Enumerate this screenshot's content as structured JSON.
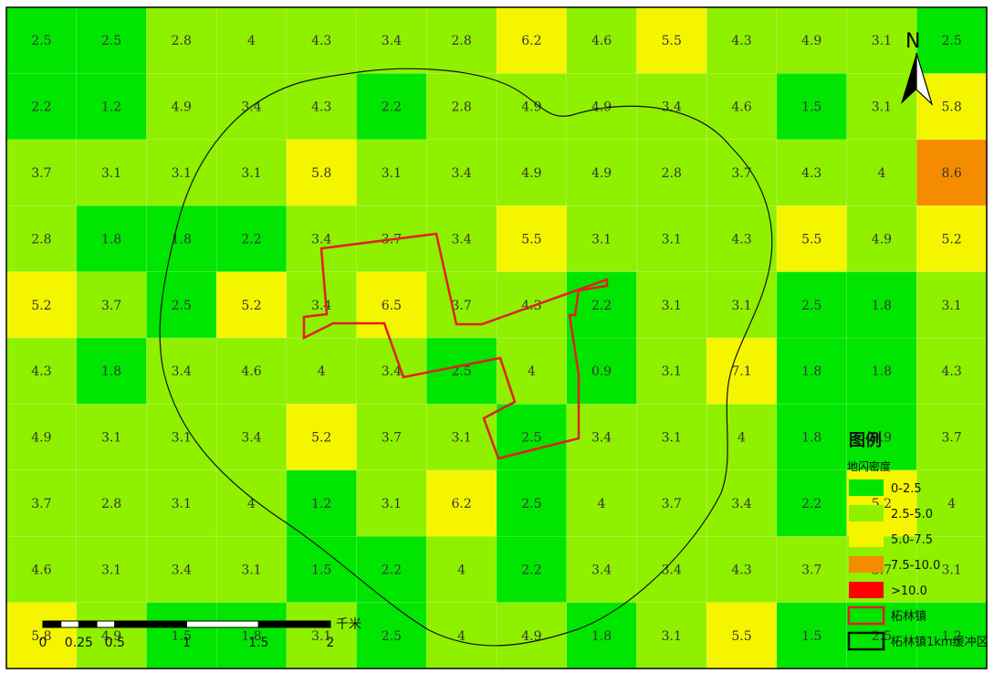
{
  "grid": {
    "rows": [
      [
        "2.5",
        "2.5",
        "2.8",
        "4",
        "4.3",
        "3.4",
        "2.8",
        "6.2",
        "4.6",
        "5.5",
        "4.3",
        "4.9",
        "3.1",
        "2.5"
      ],
      [
        "2.2",
        "1.2",
        "4.9",
        "3.4",
        "4.3",
        "2.2",
        "2.8",
        "4.9",
        "4.9",
        "3.4",
        "4.6",
        "1.5",
        "3.1",
        "5.8"
      ],
      [
        "3.7",
        "3.1",
        "3.1",
        "3.1",
        "5.8",
        "3.1",
        "3.4",
        "4.9",
        "4.9",
        "2.8",
        "3.7",
        "4.3",
        "4",
        "8.6"
      ],
      [
        "2.8",
        "1.8",
        "1.8",
        "2.2",
        "3.4",
        "3.7",
        "3.4",
        "5.5",
        "3.1",
        "3.1",
        "4.3",
        "5.5",
        "4.9",
        "5.2"
      ],
      [
        "5.2",
        "3.7",
        "2.5",
        "5.2",
        "3.4",
        "6.5",
        "3.7",
        "4.3",
        "2.2",
        "3.1",
        "3.1",
        "2.5",
        "1.8",
        "3.1"
      ],
      [
        "4.3",
        "1.8",
        "3.4",
        "4.6",
        "4",
        "3.4",
        "2.5",
        "4",
        "0.9",
        "3.1",
        "7.1",
        "1.8",
        "1.8",
        "4.3"
      ],
      [
        "4.9",
        "3.1",
        "3.1",
        "3.4",
        "5.2",
        "3.7",
        "3.1",
        "2.5",
        "3.4",
        "3.1",
        "4",
        "1.8",
        "0.9",
        "3.7"
      ],
      [
        "3.7",
        "2.8",
        "3.1",
        "4",
        "1.2",
        "3.1",
        "6.2",
        "2.5",
        "4",
        "3.7",
        "3.4",
        "2.2",
        "5.2",
        "4"
      ],
      [
        "4.6",
        "3.1",
        "3.4",
        "3.1",
        "1.5",
        "2.2",
        "4",
        "2.2",
        "3.4",
        "3.4",
        "4.3",
        "3.7",
        "3.7",
        "3.1"
      ],
      [
        "5.8",
        "4.9",
        "1.5",
        "1.8",
        "3.1",
        "2.5",
        "4",
        "4.9",
        "1.8",
        "3.1",
        "5.5",
        "1.5",
        "2.5",
        "1.2"
      ]
    ],
    "classes": [
      {
        "max": 2.5,
        "color": "#00e600"
      },
      {
        "max": 5.0,
        "color": "#8ff000"
      },
      {
        "max": 7.5,
        "color": "#f5f500"
      },
      {
        "max": 10.0,
        "color": "#f58c00"
      },
      {
        "max": 9999,
        "color": "#ff0000"
      }
    ]
  },
  "north_arrow": {
    "label": "N"
  },
  "legend": {
    "title": "图例",
    "subtitle": "地闪密度",
    "items": [
      {
        "label": "0-2.5",
        "color": "#00e600",
        "kind": "fill"
      },
      {
        "label": "2.5-5.0",
        "color": "#8ff000",
        "kind": "fill"
      },
      {
        "label": "5.0-7.5",
        "color": "#f5f500",
        "kind": "fill"
      },
      {
        "label": "7.5-10.0",
        "color": "#f58c00",
        "kind": "fill"
      },
      {
        "label": ">10.0",
        "color": "#ff0000",
        "kind": "fill"
      },
      {
        "label": "柘林镇",
        "color": "#e02020",
        "kind": "outline"
      },
      {
        "label": "柘林镇1km缓冲区",
        "color": "#111111",
        "kind": "outline"
      }
    ]
  },
  "scale_bar": {
    "ticks": [
      "0",
      "0.25",
      "0.5",
      "1",
      "1.5",
      "2"
    ],
    "unit": "千米"
  },
  "colors": {
    "town_boundary": "#e02020",
    "buffer_boundary": "#111111",
    "cell_text": "#333333"
  }
}
